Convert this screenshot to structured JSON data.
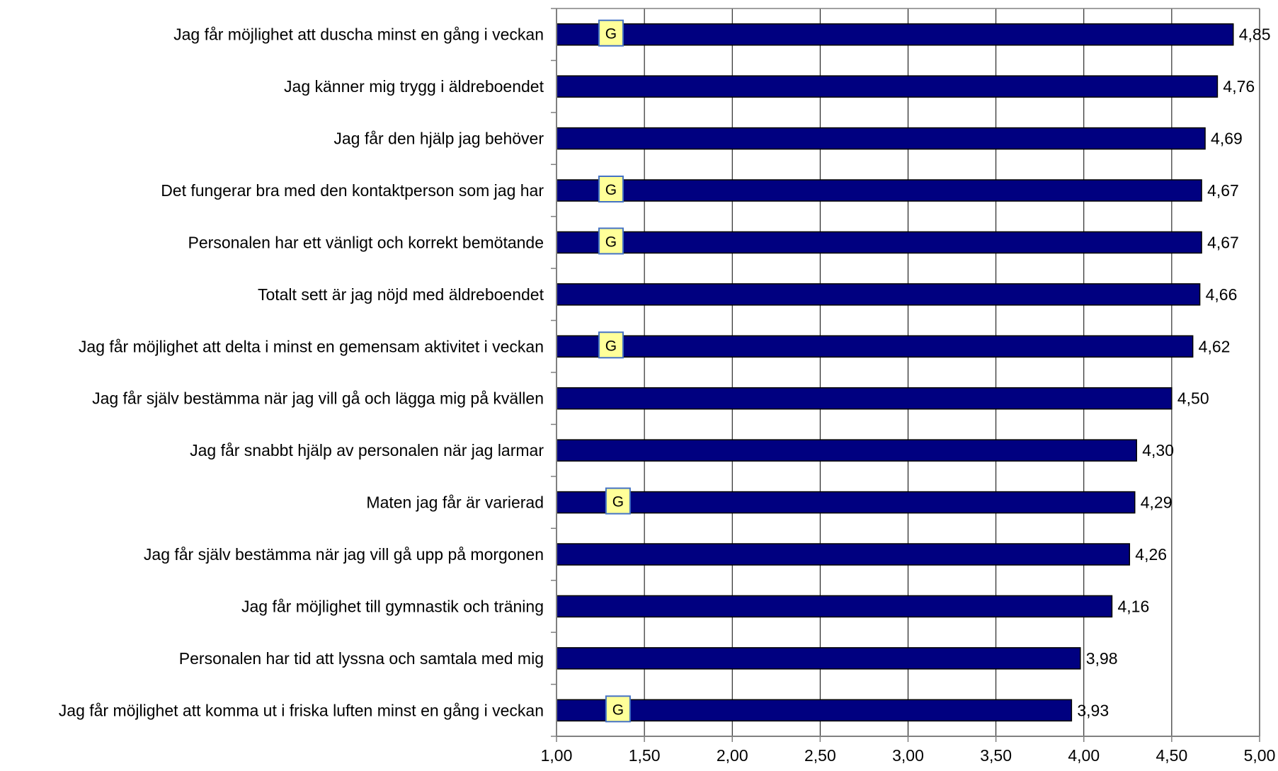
{
  "chart_data": {
    "type": "bar",
    "orientation": "horizontal",
    "categories": [
      "Jag får möjlighet att duscha minst en gång i veckan",
      "Jag känner mig trygg i äldreboendet",
      "Jag får den hjälp jag behöver",
      "Det fungerar bra med den kontaktperson som jag har",
      "Personalen har ett vänligt och korrekt bemötande",
      "Totalt sett är jag nöjd med äldreboendet",
      "Jag får möjlighet att delta i minst en gemensam aktivitet i veckan",
      "Jag får själv bestämma när jag vill gå och lägga mig på kvällen",
      "Jag får snabbt hjälp av personalen när jag larmar",
      "Maten jag får är varierad",
      "Jag får själv bestämma när jag vill gå upp på morgonen",
      "Jag får möjlighet till gymnastik och träning",
      "Personalen har tid att lyssna och samtala med mig",
      "Jag får möjlighet att komma ut i friska luften minst en gång i veckan"
    ],
    "values": [
      4.85,
      4.76,
      4.69,
      4.67,
      4.67,
      4.66,
      4.62,
      4.5,
      4.3,
      4.29,
      4.26,
      4.16,
      3.98,
      3.93
    ],
    "value_labels": [
      "4,85",
      "4,76",
      "4,69",
      "4,67",
      "4,67",
      "4,66",
      "4,62",
      "4,50",
      "4,30",
      "4,29",
      "4,26",
      "4,16",
      "3,98",
      "3,93"
    ],
    "markers": [
      {
        "index": 0,
        "label": "G",
        "value": 1.31
      },
      {
        "index": 3,
        "label": "G",
        "value": 1.31
      },
      {
        "index": 4,
        "label": "G",
        "value": 1.31
      },
      {
        "index": 6,
        "label": "G",
        "value": 1.31
      },
      {
        "index": 9,
        "label": "G",
        "value": 1.35
      },
      {
        "index": 13,
        "label": "G",
        "value": 1.35
      }
    ],
    "xlim": [
      1.0,
      5.0
    ],
    "x_ticks": [
      1.0,
      1.5,
      2.0,
      2.5,
      3.0,
      3.5,
      4.0,
      4.5,
      5.0
    ],
    "x_tick_labels": [
      "1,00",
      "1,50",
      "2,00",
      "2,50",
      "3,00",
      "3,50",
      "4,00",
      "4,50",
      "5,00"
    ],
    "title": "",
    "xlabel": "",
    "ylabel": "",
    "grid": "vertical",
    "legend": "none",
    "colors": {
      "bar_fill": "#000080",
      "bar_stroke": "#000000",
      "marker_fill": "#ffff99",
      "marker_stroke": "#4472c4",
      "gridline": "#000000",
      "axis": "#808080"
    }
  }
}
